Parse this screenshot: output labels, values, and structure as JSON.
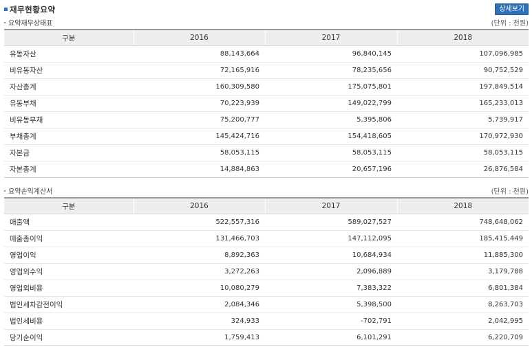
{
  "header": {
    "title": "재무현황요약",
    "detail_button": "상세보기"
  },
  "balance": {
    "section_title": "요약재무상태표",
    "unit": "(단위 : 천원)",
    "columns": [
      "구분",
      "2016",
      "2017",
      "2018"
    ],
    "rows": [
      {
        "label": "유동자산",
        "values": [
          "88,143,664",
          "96,840,145",
          "107,096,985"
        ]
      },
      {
        "label": "비유동자산",
        "values": [
          "72,165,916",
          "78,235,656",
          "90,752,529"
        ]
      },
      {
        "label": "자산총계",
        "values": [
          "160,309,580",
          "175,075,801",
          "197,849,514"
        ]
      },
      {
        "label": "유동부채",
        "values": [
          "70,223,939",
          "149,022,799",
          "165,233,013"
        ]
      },
      {
        "label": "비유동부채",
        "values": [
          "75,200,777",
          "5,395,806",
          "5,739,917"
        ]
      },
      {
        "label": "부채총계",
        "values": [
          "145,424,716",
          "154,418,605",
          "170,972,930"
        ]
      },
      {
        "label": "자본금",
        "values": [
          "58,053,115",
          "58,053,115",
          "58,053,115"
        ]
      },
      {
        "label": "자본총계",
        "values": [
          "14,884,863",
          "20,657,196",
          "26,876,584"
        ]
      }
    ]
  },
  "income": {
    "section_title": "요약손익계산서",
    "unit": "(단위 : 천원)",
    "columns": [
      "구분",
      "2016",
      "2017",
      "2018"
    ],
    "rows": [
      {
        "label": "매출액",
        "values": [
          "522,557,316",
          "589,027,527",
          "748,648,062"
        ]
      },
      {
        "label": "매출총이익",
        "values": [
          "131,466,703",
          "147,112,095",
          "185,415,449"
        ]
      },
      {
        "label": "영업이익",
        "values": [
          "8,892,363",
          "10,684,934",
          "11,885,300"
        ]
      },
      {
        "label": "영업외수익",
        "values": [
          "3,272,263",
          "2,096,889",
          "3,179,788"
        ]
      },
      {
        "label": "영업외비용",
        "values": [
          "10,080,279",
          "7,383,322",
          "6,801,384"
        ]
      },
      {
        "label": "법인세차감전이익",
        "values": [
          "2,084,346",
          "5,398,500",
          "8,263,703"
        ]
      },
      {
        "label": "법인세비용",
        "values": [
          "324,933",
          "-702,791",
          "2,042,995"
        ]
      },
      {
        "label": "당기순이익",
        "values": [
          "1,759,413",
          "6,101,291",
          "6,220,709"
        ]
      }
    ]
  }
}
